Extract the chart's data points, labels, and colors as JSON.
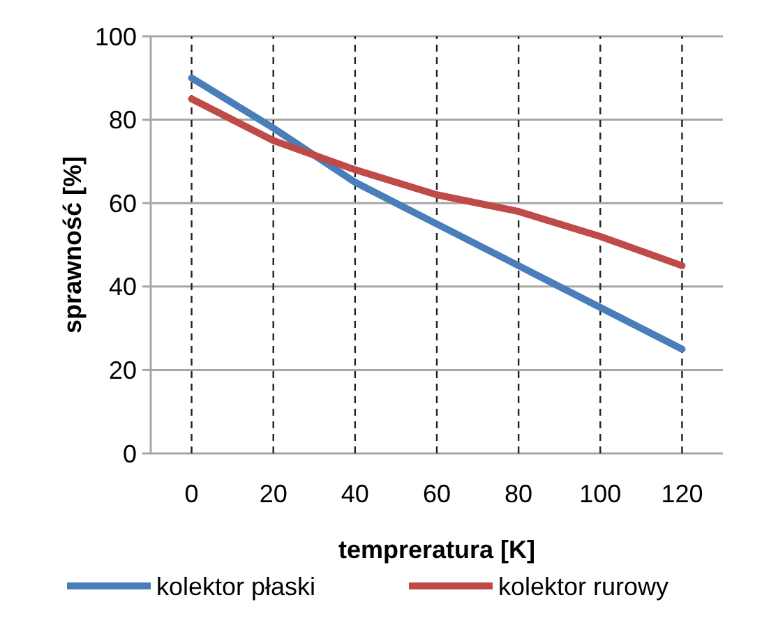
{
  "chart_data": {
    "type": "line",
    "xlabel": "tempreratura [K]",
    "ylabel": "sprawność [%]",
    "categories": [
      "0",
      "20",
      "40",
      "60",
      "80",
      "100",
      "120"
    ],
    "series": [
      {
        "name": "kolektor płaski",
        "color": "#4a7ebb",
        "values": [
          90,
          78,
          65,
          55,
          45,
          35,
          25
        ]
      },
      {
        "name": "kolektor rurowy",
        "color": "#be4b48",
        "values": [
          85,
          75,
          68,
          62,
          58,
          52,
          45
        ]
      }
    ],
    "ylim": [
      0,
      100
    ],
    "yticks": [
      0,
      20,
      40,
      60,
      80,
      100
    ],
    "grid": true,
    "legend": "bottom",
    "marker": "none",
    "line_style": "solid"
  }
}
